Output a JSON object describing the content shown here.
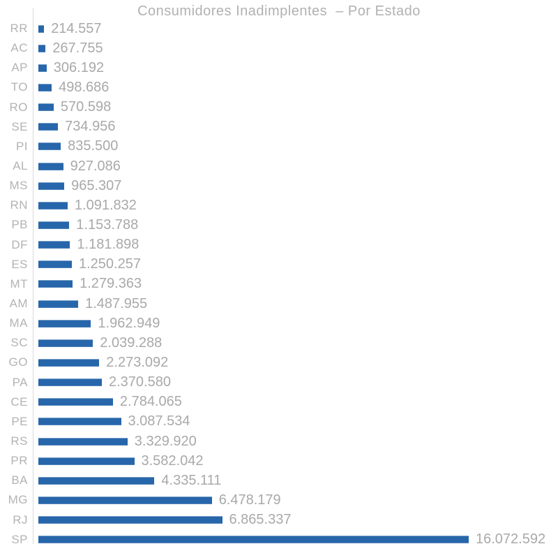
{
  "chart_data": {
    "type": "bar",
    "orientation": "horizontal",
    "title": "Consumidores Inadimplentes  – Por Estado",
    "xlabel": "",
    "ylabel": "",
    "legend": "none",
    "grid": false,
    "xlim": [
      0,
      16500000
    ],
    "categories": [
      "RR",
      "AC",
      "AP",
      "TO",
      "RO",
      "SE",
      "PI",
      "AL",
      "MS",
      "RN",
      "PB",
      "DF",
      "ES",
      "MT",
      "AM",
      "MA",
      "SC",
      "GO",
      "PA",
      "CE",
      "PE",
      "RS",
      "PR",
      "BA",
      "MG",
      "RJ",
      "SP"
    ],
    "values": [
      214557,
      267755,
      306192,
      498686,
      570598,
      734956,
      835500,
      927086,
      965307,
      1091832,
      1153788,
      1181898,
      1250257,
      1279363,
      1487955,
      1962949,
      2039288,
      2273092,
      2370580,
      2784065,
      3087534,
      3329920,
      3582042,
      4335111,
      6478179,
      6865337,
      16072592
    ],
    "value_labels": [
      "214.557",
      "267.755",
      "306.192",
      "498.686",
      "570.598",
      "734.956",
      "835.500",
      "927.086",
      "965.307",
      "1.091.832",
      "1.153.788",
      "1.181.898",
      "1.250.257",
      "1.279.363",
      "1.487.955",
      "1.962.949",
      "2.039.288",
      "2.273.092",
      "2.370.580",
      "2.784.065",
      "3.087.534",
      "3.329.920",
      "3.582.042",
      "4.335.111",
      "6.478.179",
      "6.865.337",
      "16.072.592"
    ],
    "colors": {
      "bar": "#2766aa",
      "category_label": "#b3b3b3",
      "value_label": "#a9a9a9",
      "title": "#b1b1b1",
      "axis": "#d9d9d9",
      "background": "#ffffff"
    }
  }
}
